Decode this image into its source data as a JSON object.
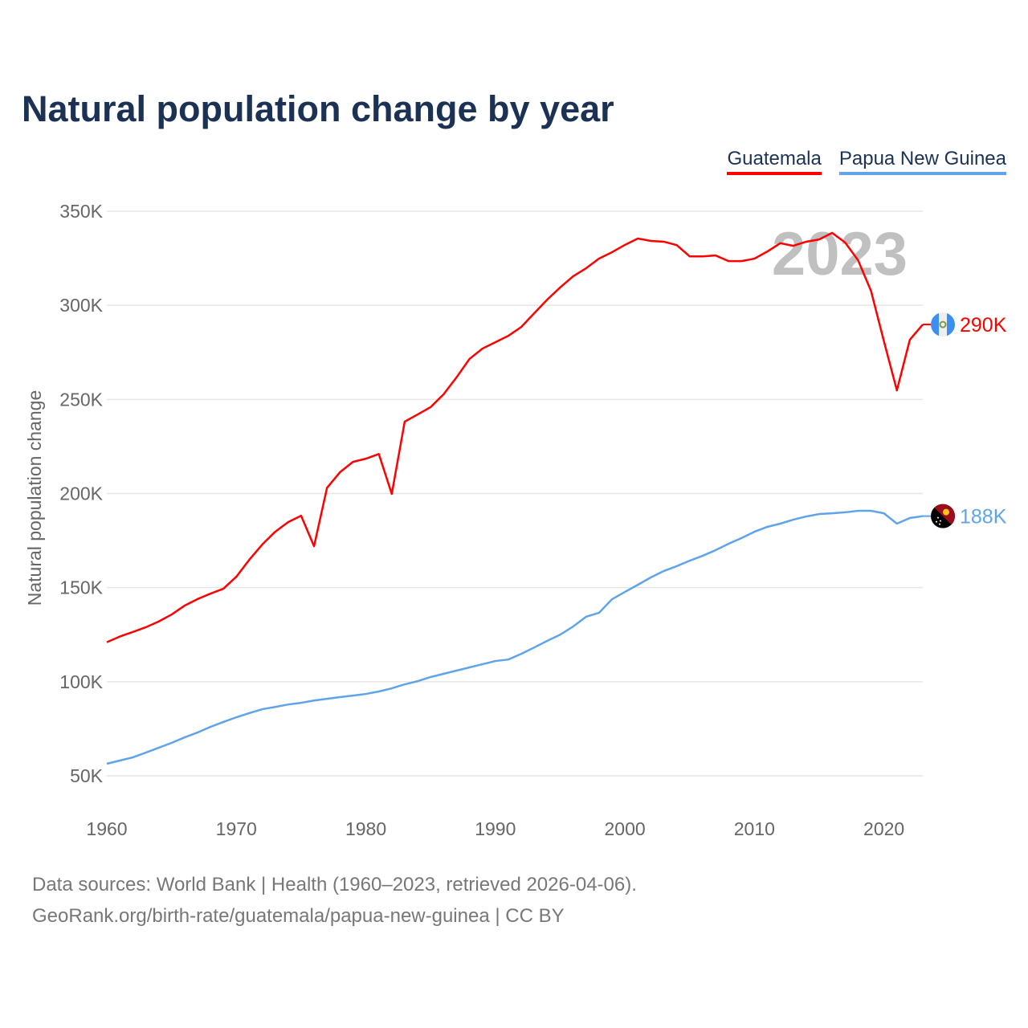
{
  "chart_data": {
    "type": "line",
    "title": "Natural population change by year",
    "xlabel": "",
    "ylabel": "Natural population change",
    "year_watermark": "2023",
    "xlim": [
      1960,
      2023
    ],
    "ylim": [
      50000,
      350000
    ],
    "x_ticks": [
      1960,
      1970,
      1980,
      1990,
      2000,
      2010,
      2020
    ],
    "y_ticks": [
      50000,
      100000,
      150000,
      200000,
      250000,
      300000,
      350000
    ],
    "y_tick_labels": [
      "50K",
      "100K",
      "150K",
      "200K",
      "250K",
      "300K",
      "350K"
    ],
    "grid": true,
    "legend_position": "top-right",
    "x": [
      1960,
      1961,
      1962,
      1963,
      1964,
      1965,
      1966,
      1967,
      1968,
      1969,
      1970,
      1971,
      1972,
      1973,
      1974,
      1975,
      1976,
      1977,
      1978,
      1979,
      1980,
      1981,
      1982,
      1983,
      1984,
      1985,
      1986,
      1987,
      1988,
      1989,
      1990,
      1991,
      1992,
      1993,
      1994,
      1995,
      1996,
      1997,
      1998,
      1999,
      2000,
      2001,
      2002,
      2003,
      2004,
      2005,
      2006,
      2007,
      2008,
      2009,
      2010,
      2011,
      2012,
      2013,
      2014,
      2015,
      2016,
      2017,
      2018,
      2019,
      2020,
      2021,
      2022,
      2023
    ],
    "series": [
      {
        "name": "Guatemala",
        "color": "#ff0000",
        "end_label": "290K",
        "flag": "guatemala-flag",
        "values": [
          121000,
          124000,
          126400,
          128900,
          132000,
          135700,
          140400,
          143900,
          146800,
          149400,
          155800,
          164800,
          172900,
          179700,
          184800,
          188200,
          172000,
          203000,
          211300,
          216800,
          218500,
          221000,
          199800,
          238200,
          242000,
          245900,
          252700,
          261700,
          271500,
          277000,
          280400,
          283800,
          288500,
          295800,
          303000,
          309500,
          315400,
          319700,
          324800,
          328200,
          332100,
          335500,
          334200,
          333800,
          332000,
          326000,
          326000,
          326500,
          323500,
          323500,
          324800,
          328600,
          333000,
          331600,
          333800,
          335000,
          338500,
          333400,
          324000,
          307700,
          280900,
          254800,
          281700,
          289800
        ]
      },
      {
        "name": "Papua New Guinea",
        "color": "#5fa4ea",
        "end_label": "188K",
        "flag": "papua-new-guinea-flag",
        "values": [
          56400,
          58100,
          59800,
          62300,
          64900,
          67500,
          70400,
          73000,
          76000,
          78600,
          81100,
          83300,
          85400,
          86600,
          87900,
          88800,
          90000,
          90900,
          91800,
          92600,
          93500,
          94800,
          96500,
          98600,
          100300,
          102500,
          104200,
          105900,
          107600,
          109300,
          111000,
          111800,
          114800,
          118200,
          121700,
          125000,
          129300,
          134500,
          136600,
          143800,
          147700,
          151500,
          155400,
          158800,
          161400,
          164300,
          166900,
          169900,
          173300,
          176300,
          179700,
          182300,
          184000,
          186100,
          187800,
          189100,
          189500,
          190000,
          190800,
          190800,
          189500,
          184000,
          187000,
          188000
        ]
      }
    ]
  },
  "footer": {
    "line1": "Data sources: World Bank | Health (1960–2023, retrieved 2026-04-06).",
    "line2": "GeoRank.org/birth-rate/guatemala/papua-new-guinea | CC BY"
  }
}
